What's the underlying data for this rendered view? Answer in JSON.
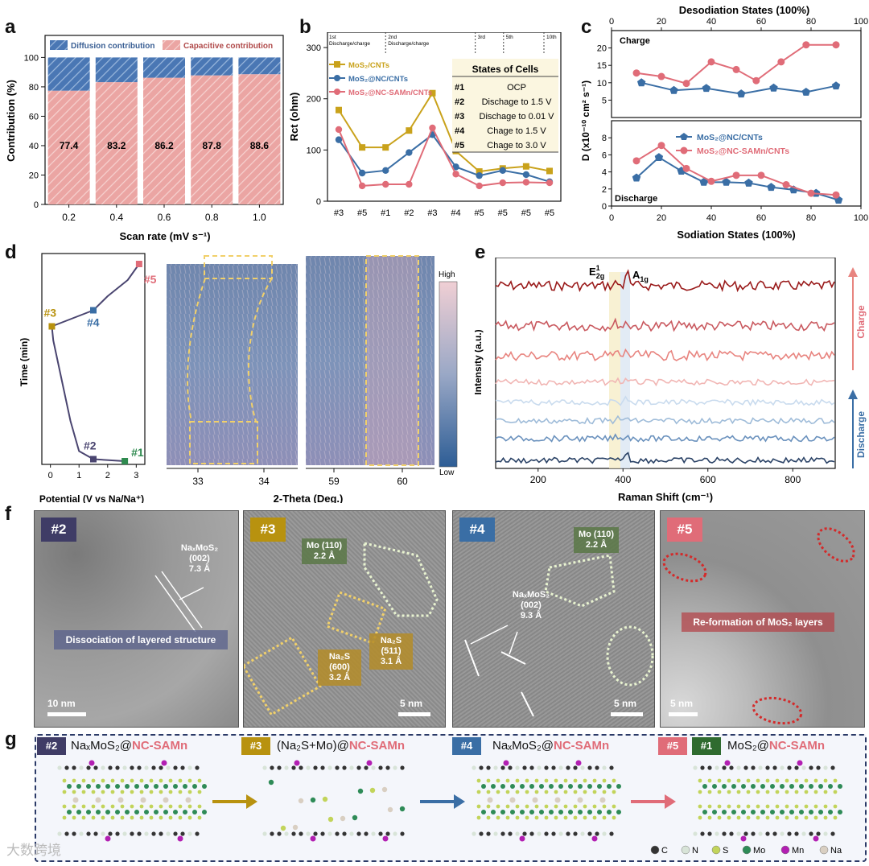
{
  "figure": {
    "panel_labels": [
      "a",
      "b",
      "c",
      "d",
      "e",
      "f",
      "g"
    ],
    "watermark": "大数跨境"
  },
  "panel_a": {
    "ylabel": "Contribution (%)",
    "xlabel": "Scan rate (mV s⁻¹)",
    "legend_diffusion": "Diffusion contribution",
    "legend_capacitive": "Capacitive contribution",
    "colors": {
      "diffusion": "#4a77b4",
      "capacitive": "#e88f8f"
    },
    "yticks": [
      "0",
      "20",
      "40",
      "60",
      "80",
      "100"
    ]
  },
  "panel_b": {
    "ylabel": "Rct (ohm)",
    "yticks": [
      "0",
      "100",
      "200",
      "300"
    ],
    "cycle_labels": [
      "1st\nDischarge/charge",
      "2nd\nDischarge/charge",
      "3rd",
      "5th",
      "10th"
    ],
    "cycle_1": "1st",
    "cycle_1_sub": "Discharge/charge",
    "cycle_2": "2nd",
    "cycle_2_sub": "Discharge/charge",
    "cycle_3": "3rd",
    "cycle_5": "5th",
    "cycle_10": "10th",
    "table_title": "States of Cells",
    "states": [
      {
        "id": "#1",
        "desc": "OCP"
      },
      {
        "id": "#2",
        "desc": "Dischage to 1.5 V"
      },
      {
        "id": "#3",
        "desc": "Dischage to 0.01 V"
      },
      {
        "id": "#4",
        "desc": "Chage to 1.5 V"
      },
      {
        "id": "#5",
        "desc": "Chage to 3.0 V"
      }
    ]
  },
  "panel_c": {
    "top_xlabel": "Desodiation States (100%)",
    "bottom_xlabel": "Sodiation States (100%)",
    "ylabel": "D (x10⁻¹⁰ cm² s⁻¹)",
    "charge_label": "Charge",
    "discharge_label": "Discharge"
  },
  "panel_d": {
    "ylabel": "Time (min)",
    "xlabel": "Potential (V vs Na/Na⁺)",
    "xticks": [
      "0",
      "1",
      "2",
      "3"
    ],
    "theta_label": "2-Theta (Deg.)",
    "theta_ticks_left": [
      "33",
      "34"
    ],
    "theta_ticks_right": [
      "59",
      "60"
    ],
    "colorbar_high": "High",
    "colorbar_low": "Low",
    "points": [
      {
        "label": "#1",
        "color": "#2f8a4f"
      },
      {
        "label": "#2",
        "color": "#4a4570"
      },
      {
        "label": "#3",
        "color": "#b8920f"
      },
      {
        "label": "#4",
        "color": "#3a6ea5"
      },
      {
        "label": "#5",
        "color": "#e06c78"
      }
    ]
  },
  "panel_e": {
    "ylabel": "Intensity (a.u.)",
    "xlabel": "Raman Shift (cm⁻¹)",
    "xticks": [
      "200",
      "400",
      "600",
      "800"
    ],
    "peak1": "E",
    "peak1_sup": "1",
    "peak1_sub": "2g",
    "peak2": "A",
    "peak2_sub": "1g",
    "charge_label": "Charge",
    "discharge_label": "Discharge",
    "trace_colors": [
      "#9a1b1b",
      "#c9595f",
      "#e8847f",
      "#f1b6b4",
      "#c9dbee",
      "#9fbcd9",
      "#6a91bd",
      "#2a4266"
    ]
  },
  "panel_f": {
    "images": [
      {
        "tag": "#2",
        "tag_color": "#3f3c66",
        "note": "NaₓMoS₂\n(002)\n7.3 Å",
        "banner": "Dissociation of layered structure",
        "scale": "10 nm"
      },
      {
        "tag": "#3",
        "tag_color": "#b8920f",
        "note1": "Mo (110)\n2.2 Å",
        "note2": "Na₂S\n(511)\n3.1 Å",
        "note3": "Na₂S\n(600)\n3.2 Å",
        "scale": "5 nm"
      },
      {
        "tag": "#4",
        "tag_color": "#3a6ea5",
        "note1": "Mo (110)\n2.2 Å",
        "note2": "NaₓMoS₂\n(002)\n9.3 Å",
        "scale": "5 nm"
      },
      {
        "tag": "#5",
        "tag_color": "#e06c78",
        "banner": "Re-formation of MoS₂ layers",
        "scale": "5 nm"
      }
    ]
  },
  "panel_g": {
    "stages": [
      {
        "tag": "#2",
        "tag_color": "#3f3c66",
        "pre": "NaₓMoS₂@",
        "post": "NC-SAMn"
      },
      {
        "tag": "#3",
        "tag_color": "#b8920f",
        "pre": "(Na₂S+Mo)@",
        "post": "NC-SAMn"
      },
      {
        "tag": "#4",
        "tag_color": "#3a6ea5",
        "pre": "NaₓMoS₂@",
        "post": "NC-SAMn"
      },
      {
        "tag": "#5",
        "tag_color": "#e06c78",
        "tag2": "#1",
        "tag2_color": "#2f6b2f",
        "pre": "MoS₂@",
        "post": "NC-SAMn"
      }
    ],
    "legend": [
      {
        "label": "C",
        "color": "#333333"
      },
      {
        "label": "N",
        "color": "#d8e4d8"
      },
      {
        "label": "S",
        "color": "#c2d45a"
      },
      {
        "label": "Mo",
        "color": "#2e8b57"
      },
      {
        "label": "Mn",
        "color": "#b21fb2"
      },
      {
        "label": "Na",
        "color": "#d9cfc2"
      }
    ]
  },
  "chart_data": [
    {
      "id": "a",
      "type": "bar",
      "title": "",
      "categories": [
        "0.2",
        "0.4",
        "0.6",
        "0.8",
        "1.0"
      ],
      "series": [
        {
          "name": "Capacitive contribution",
          "values": [
            77.4,
            83.2,
            86.2,
            87.8,
            88.6
          ]
        },
        {
          "name": "Diffusion contribution",
          "values": [
            22.6,
            16.8,
            13.8,
            12.2,
            11.4
          ]
        }
      ],
      "xlabel": "Scan rate (mV s⁻¹)",
      "ylabel": "Contribution (%)",
      "ylim": [
        0,
        115
      ],
      "stacked": true
    },
    {
      "id": "b",
      "type": "line",
      "categories": [
        "#3",
        "#5",
        "#1",
        "#2",
        "#3",
        "#4",
        "#5",
        "#5",
        "#5",
        "#5"
      ],
      "series": [
        {
          "name": "MoS₂/CNTs",
          "color": "#c9a21b",
          "marker": "square",
          "values": [
            178,
            105,
            105,
            138,
            211,
            98,
            58,
            64,
            68,
            59
          ]
        },
        {
          "name": "MoS₂@NC/CNTs",
          "color": "#3a6ea5",
          "marker": "circle",
          "values": [
            120,
            55,
            60,
            95,
            130,
            67,
            50,
            60,
            52,
            38
          ]
        },
        {
          "name": "MoS₂@NC-SAMn/CNTs",
          "color": "#e06c78",
          "marker": "circle",
          "values": [
            140,
            30,
            33,
            33,
            143,
            53,
            30,
            36,
            37,
            36
          ]
        }
      ],
      "ylabel": "Rct (ohm)",
      "ylim": [
        0,
        330
      ],
      "legend": "top-left"
    },
    {
      "id": "c-top",
      "type": "line",
      "x": [
        10,
        20,
        30,
        40,
        50,
        60,
        70,
        80,
        90
      ],
      "series": [
        {
          "name": "MoS₂@NC/CNTs",
          "color": "#3a6ea5",
          "marker": "pentagon",
          "x": [
            12,
            25,
            38,
            52,
            65,
            78,
            90
          ],
          "values": [
            10,
            7.8,
            8.4,
            6.8,
            8.5,
            7.3,
            9.1
          ]
        },
        {
          "name": "MoS₂@NC-SAMn/CNTs",
          "color": "#e06c78",
          "marker": "circle",
          "x": [
            10,
            20,
            30,
            40,
            50,
            58,
            68,
            78,
            90
          ],
          "values": [
            12.8,
            11.8,
            9.8,
            16,
            13.8,
            10.6,
            16,
            20.9,
            20.9
          ]
        }
      ],
      "xlabel": "Desodiation States (100%)",
      "xlim": [
        0,
        100
      ],
      "ylim": [
        0,
        25
      ],
      "annotation": "Charge"
    },
    {
      "id": "c-bottom",
      "type": "line",
      "series": [
        {
          "name": "MoS₂@NC/CNTs",
          "color": "#3a6ea5",
          "marker": "pentagon",
          "x": [
            10,
            19,
            28,
            37,
            46,
            55,
            64,
            73,
            82,
            91
          ],
          "values": [
            3.3,
            5.7,
            4.1,
            2.8,
            2.8,
            2.7,
            2.2,
            1.9,
            1.5,
            0.7
          ]
        },
        {
          "name": "MoS₂@NC-SAMn/CNTs",
          "color": "#e06c78",
          "marker": "circle",
          "x": [
            10,
            20,
            30,
            40,
            50,
            60,
            70,
            80,
            90
          ],
          "values": [
            5.3,
            7.1,
            4.4,
            2.9,
            3.6,
            3.6,
            2.5,
            1.5,
            1.3
          ]
        }
      ],
      "xlabel": "Sodiation States (100%)",
      "xticks": [
        0,
        20,
        40,
        60,
        80,
        100
      ],
      "ylim": [
        0,
        10
      ],
      "annotation": "Discharge"
    },
    {
      "id": "d-potential",
      "type": "line",
      "series": [
        {
          "name": "potential profile",
          "x": [
            2.6,
            1.5,
            1.0,
            0.7,
            0.4,
            0.1,
            0.05,
            1.5,
            2.0,
            2.7,
            3.1
          ],
          "values": [
            0,
            1,
            5,
            20,
            40,
            60,
            67,
            75,
            82,
            90,
            98
          ]
        }
      ],
      "xlabel": "Potential (V vs Na/Na⁺)",
      "ylabel": "Time (min)",
      "xlim": [
        -0.3,
        3.3
      ]
    },
    {
      "id": "e",
      "type": "line",
      "xlabel": "Raman Shift (cm⁻¹)",
      "ylabel": "Intensity (a.u.)",
      "xlim": [
        100,
        900
      ],
      "series": [
        {
          "name": "charge-4",
          "values": []
        },
        {
          "name": "charge-3",
          "values": []
        },
        {
          "name": "charge-2",
          "values": []
        },
        {
          "name": "charge-1",
          "values": []
        },
        {
          "name": "discharge-4",
          "values": []
        },
        {
          "name": "discharge-3",
          "values": []
        },
        {
          "name": "discharge-2",
          "values": []
        },
        {
          "name": "discharge-1",
          "values": []
        }
      ],
      "peaks": [
        {
          "name": "E2g1",
          "x": 383
        },
        {
          "name": "A1g",
          "x": 408
        }
      ]
    }
  ]
}
